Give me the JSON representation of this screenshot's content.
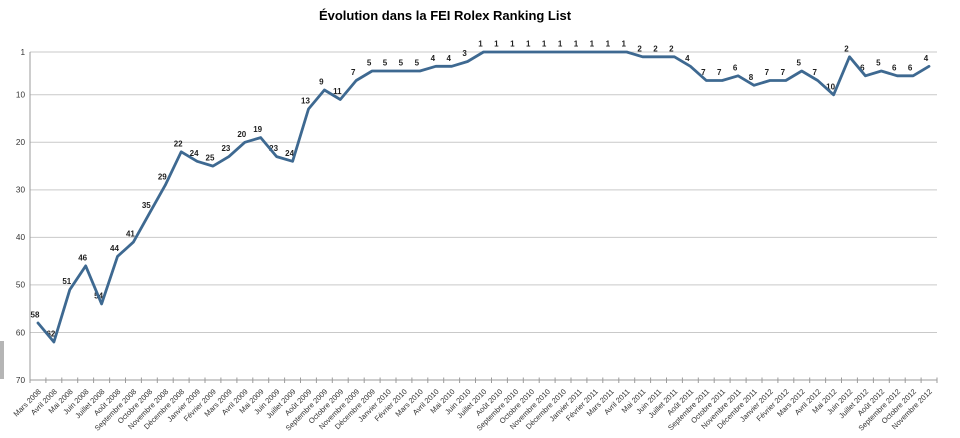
{
  "page": {
    "background_color": "#ffffff"
  },
  "chart_data": {
    "type": "line",
    "title": "Évolution dans la FEI Rolex Ranking List",
    "xlabel": "",
    "ylabel": "",
    "y_axis_inverted": true,
    "ylim": [
      1,
      70
    ],
    "y_ticks": [
      1,
      10,
      20,
      30,
      40,
      50,
      60,
      70
    ],
    "grid": true,
    "legend_position": "none",
    "data_labels_visible": true,
    "line_color": "#3e6991",
    "gridline_color": "#c9c9c9",
    "axis_color": "#9b9b9b",
    "tick_label_color": "#333333",
    "data_label_color": "#1f1f1f",
    "title_color": "#000000",
    "categories": [
      "Mars 2008",
      "Avril 2008",
      "Mai 2008",
      "Juin 2008",
      "Juillet 2008",
      "Août 2008",
      "Septembre 2008",
      "Octobre 2008",
      "Novembre 2008",
      "Décembre 2008",
      "Janvier 2009",
      "Février 2009",
      "Mars 2009",
      "Avril 2009",
      "Mai 2009",
      "Juin 2009",
      "Juillet 2009",
      "Août 2009",
      "Septembre 2009",
      "Octobre 2009",
      "Novembre 2009",
      "Décembre 2009",
      "Janvier 2010",
      "Février 2010",
      "Mars 2010",
      "Avril 2010",
      "Mai 2010",
      "Juin 2010",
      "Juillet 2010",
      "Août 2010",
      "Septembre 2010",
      "Octobre 2010",
      "Novembre 2010",
      "Décembre 2010",
      "Janvier 2011",
      "Février 2011",
      "Mars 2011",
      "Avril 2011",
      "Mai 2011",
      "Juin 2011",
      "Juillet 2011",
      "Août 2011",
      "Septembre 2011",
      "Octobre 2011",
      "Novembre 2011",
      "Décembre 2011",
      "Janvier 2012",
      "Février 2012",
      "Mars 2012",
      "Avril 2012",
      "Mai 2012",
      "Juin 2012",
      "Juillet 2012",
      "Août 2012",
      "Septembre 2012",
      "Octobre 2012",
      "Novembre 2012"
    ],
    "values": [
      58,
      62,
      51,
      46,
      54,
      44,
      41,
      35,
      29,
      22,
      24,
      25,
      23,
      20,
      19,
      23,
      24,
      13,
      9,
      11,
      7,
      5,
      5,
      5,
      5,
      4,
      4,
      3,
      1,
      1,
      1,
      1,
      1,
      1,
      1,
      1,
      1,
      1,
      2,
      2,
      2,
      4,
      7,
      7,
      6,
      8,
      7,
      7,
      5,
      7,
      10,
      2,
      6,
      5,
      6,
      6,
      4
    ]
  }
}
